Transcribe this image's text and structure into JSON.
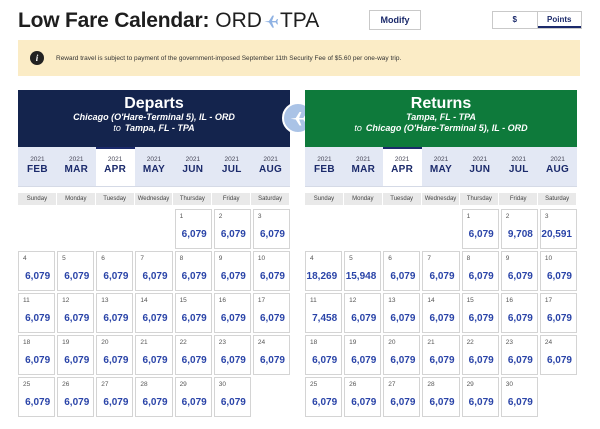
{
  "header": {
    "title": "Low Fare Calendar:",
    "origin": "ORD",
    "destination": "TPA",
    "modify_label": "Modify",
    "currency_toggle": {
      "dollar_label": "$",
      "points_label": "Points",
      "selected": "Points"
    }
  },
  "notice": {
    "text": "Reward travel is subject to payment of the government-imposed September 11th Security Fee of $5.60 per one-way trip."
  },
  "departs": {
    "heading": "Departs",
    "from": "Chicago (O'Hare-Terminal 5), IL - ORD",
    "to_label": "to",
    "to": "Tampa, FL - TPA",
    "months": [
      {
        "year": "2021",
        "month": "FEB"
      },
      {
        "year": "2021",
        "month": "MAR"
      },
      {
        "year": "2021",
        "month": "APR",
        "selected": true
      },
      {
        "year": "2021",
        "month": "MAY"
      },
      {
        "year": "2021",
        "month": "JUN"
      },
      {
        "year": "2021",
        "month": "JUL"
      },
      {
        "year": "2021",
        "month": "AUG"
      }
    ],
    "weekdays": [
      "Sunday",
      "Monday",
      "Tuesday",
      "Wednesday",
      "Thursday",
      "Friday",
      "Saturday"
    ],
    "leading_blanks": 4,
    "days": [
      {
        "day": "1",
        "fare": "6,079"
      },
      {
        "day": "2",
        "fare": "6,079"
      },
      {
        "day": "3",
        "fare": "6,079"
      },
      {
        "day": "4",
        "fare": "6,079"
      },
      {
        "day": "5",
        "fare": "6,079"
      },
      {
        "day": "6",
        "fare": "6,079"
      },
      {
        "day": "7",
        "fare": "6,079"
      },
      {
        "day": "8",
        "fare": "6,079"
      },
      {
        "day": "9",
        "fare": "6,079"
      },
      {
        "day": "10",
        "fare": "6,079"
      },
      {
        "day": "11",
        "fare": "6,079"
      },
      {
        "day": "12",
        "fare": "6,079"
      },
      {
        "day": "13",
        "fare": "6,079"
      },
      {
        "day": "14",
        "fare": "6,079"
      },
      {
        "day": "15",
        "fare": "6,079"
      },
      {
        "day": "16",
        "fare": "6,079"
      },
      {
        "day": "17",
        "fare": "6,079"
      },
      {
        "day": "18",
        "fare": "6,079"
      },
      {
        "day": "19",
        "fare": "6,079"
      },
      {
        "day": "20",
        "fare": "6,079"
      },
      {
        "day": "21",
        "fare": "6,079"
      },
      {
        "day": "22",
        "fare": "6,079"
      },
      {
        "day": "23",
        "fare": "6,079"
      },
      {
        "day": "24",
        "fare": "6,079"
      },
      {
        "day": "25",
        "fare": "6,079"
      },
      {
        "day": "26",
        "fare": "6,079"
      },
      {
        "day": "27",
        "fare": "6,079"
      },
      {
        "day": "28",
        "fare": "6,079"
      },
      {
        "day": "29",
        "fare": "6,079"
      },
      {
        "day": "30",
        "fare": "6,079"
      }
    ]
  },
  "returns": {
    "heading": "Returns",
    "from": "Tampa, FL - TPA",
    "to_label": "to",
    "to": "Chicago (O'Hare-Terminal 5), IL - ORD",
    "months": [
      {
        "year": "2021",
        "month": "FEB"
      },
      {
        "year": "2021",
        "month": "MAR"
      },
      {
        "year": "2021",
        "month": "APR",
        "selected": true
      },
      {
        "year": "2021",
        "month": "MAY"
      },
      {
        "year": "2021",
        "month": "JUN"
      },
      {
        "year": "2021",
        "month": "JUL"
      },
      {
        "year": "2021",
        "month": "AUG"
      }
    ],
    "weekdays": [
      "Sunday",
      "Monday",
      "Tuesday",
      "Wednesday",
      "Thursday",
      "Friday",
      "Saturday"
    ],
    "leading_blanks": 4,
    "days": [
      {
        "day": "1",
        "fare": "6,079"
      },
      {
        "day": "2",
        "fare": "9,708"
      },
      {
        "day": "3",
        "fare": "20,591"
      },
      {
        "day": "4",
        "fare": "18,269"
      },
      {
        "day": "5",
        "fare": "15,948"
      },
      {
        "day": "6",
        "fare": "6,079"
      },
      {
        "day": "7",
        "fare": "6,079"
      },
      {
        "day": "8",
        "fare": "6,079"
      },
      {
        "day": "9",
        "fare": "6,079"
      },
      {
        "day": "10",
        "fare": "6,079"
      },
      {
        "day": "11",
        "fare": "7,458"
      },
      {
        "day": "12",
        "fare": "6,079"
      },
      {
        "day": "13",
        "fare": "6,079"
      },
      {
        "day": "14",
        "fare": "6,079"
      },
      {
        "day": "15",
        "fare": "6,079"
      },
      {
        "day": "16",
        "fare": "6,079"
      },
      {
        "day": "17",
        "fare": "6,079"
      },
      {
        "day": "18",
        "fare": "6,079"
      },
      {
        "day": "19",
        "fare": "6,079"
      },
      {
        "day": "20",
        "fare": "6,079"
      },
      {
        "day": "21",
        "fare": "6,079"
      },
      {
        "day": "22",
        "fare": "6,079"
      },
      {
        "day": "23",
        "fare": "6,079"
      },
      {
        "day": "24",
        "fare": "6,079"
      },
      {
        "day": "25",
        "fare": "6,079"
      },
      {
        "day": "26",
        "fare": "6,079"
      },
      {
        "day": "27",
        "fare": "6,079"
      },
      {
        "day": "28",
        "fare": "6,079"
      },
      {
        "day": "29",
        "fare": "6,079"
      },
      {
        "day": "30",
        "fare": "6,079"
      }
    ]
  },
  "icons": {
    "route": "plane-icon",
    "swap": "plane-icon",
    "notice": "info-icon"
  },
  "colors": {
    "departs_banner": "#14244d",
    "returns_banner": "#0e7a3b",
    "fare_text": "#2a44a8",
    "notice_bg": "#fbecc6"
  }
}
